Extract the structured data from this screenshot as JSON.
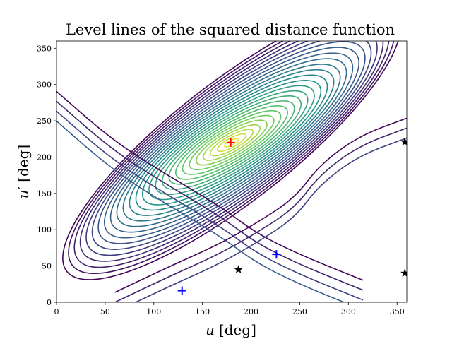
{
  "chart_data": {
    "type": "contour",
    "title": "Level lines of the squared distance function",
    "xlabel": "u",
    "xlabel_unit": "[deg]",
    "ylabel": "u′",
    "ylabel_unit": "[deg]",
    "xlim": [
      0,
      360
    ],
    "ylim": [
      0,
      360
    ],
    "x_ticks": [
      0,
      50,
      100,
      150,
      200,
      250,
      300,
      350
    ],
    "y_ticks": [
      0,
      50,
      100,
      150,
      200,
      250,
      300,
      350
    ],
    "colormap": "viridis",
    "colormap_colors": [
      "#440154",
      "#3b528b",
      "#21918c",
      "#5ec962",
      "#fde725"
    ],
    "contour": {
      "maximum": {
        "u": 180,
        "u_prime": 220
      },
      "inclination_deg": 38,
      "semi_axis_major": 215,
      "semi_axis_minor": 82,
      "rings": 26,
      "ridge_lines": [
        {
          "points": [
            [
              315,
              10
            ],
            [
              250,
              45
            ],
            [
              205,
              75
            ],
            [
              170,
              110
            ],
            [
              120,
              150
            ],
            [
              60,
              200
            ],
            [
              0,
              270
            ]
          ],
          "rings": 4
        },
        {
          "points": [
            [
              360,
              240
            ],
            [
              310,
              215
            ],
            [
              270,
              175
            ],
            [
              245,
              130
            ],
            [
              205,
              95
            ],
            [
              165,
              65
            ],
            [
              115,
              35
            ],
            [
              60,
              0
            ]
          ],
          "rings": 3
        }
      ]
    },
    "markers": [
      {
        "kind": "plus",
        "color": "#ff0000",
        "u": 179,
        "u_prime": 220
      },
      {
        "kind": "plus",
        "color": "#0000ff",
        "u": 226,
        "u_prime": 66
      },
      {
        "kind": "plus",
        "color": "#0000ff",
        "u": 129,
        "u_prime": 16
      },
      {
        "kind": "star",
        "color": "#000000",
        "u": 187,
        "u_prime": 45
      },
      {
        "kind": "star",
        "color": "#000000",
        "u": 358,
        "u_prime": 221
      },
      {
        "kind": "star",
        "color": "#000000",
        "u": 358,
        "u_prime": 40
      }
    ]
  }
}
